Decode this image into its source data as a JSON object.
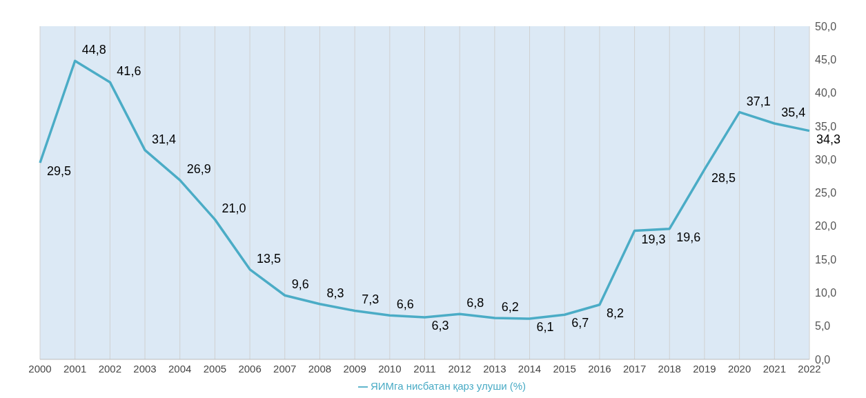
{
  "chart_data": {
    "type": "line",
    "categories": [
      "2000",
      "2001",
      "2002",
      "2003",
      "2004",
      "2005",
      "2006",
      "2007",
      "2008",
      "2009",
      "2010",
      "2011",
      "2012",
      "2013",
      "2014",
      "2015",
      "2016",
      "2017",
      "2018",
      "2019",
      "2020",
      "2021",
      "2022"
    ],
    "series": [
      {
        "name": "ЯИМга нисбатан қарз улуши (%)",
        "color": "#4bacc6",
        "values": [
          29.5,
          44.8,
          41.6,
          31.4,
          26.9,
          21.0,
          13.5,
          9.6,
          8.3,
          7.3,
          6.6,
          6.3,
          6.8,
          6.2,
          6.1,
          6.7,
          8.2,
          19.3,
          19.6,
          28.5,
          37.1,
          35.4,
          34.3
        ],
        "value_labels": [
          "29,5",
          "44,8",
          "41,6",
          "31,4",
          "26,9",
          "21,0",
          "13,5",
          "9,6",
          "8,3",
          "7,3",
          "6,6",
          "6,3",
          "6,8",
          "6,2",
          "6,1",
          "6,7",
          "8,2",
          "19,3",
          "19,6",
          "28,5",
          "37,1",
          "35,4",
          "34,3"
        ]
      }
    ],
    "ylim": [
      0,
      50
    ],
    "yticks": [
      {
        "value": 0,
        "label": "0,0"
      },
      {
        "value": 5,
        "label": "5,0"
      },
      {
        "value": 10,
        "label": "10,0"
      },
      {
        "value": 15,
        "label": "15,0"
      },
      {
        "value": 20,
        "label": "20,0"
      },
      {
        "value": 25,
        "label": "25,0"
      },
      {
        "value": 30,
        "label": "30,0"
      },
      {
        "value": 35,
        "label": "35,0"
      },
      {
        "value": 40,
        "label": "40,0"
      },
      {
        "value": 45,
        "label": "45,0"
      },
      {
        "value": 50,
        "label": "50,0"
      }
    ],
    "grid": "x",
    "legend": "bottom",
    "marker": "none",
    "line_style": "solid"
  }
}
